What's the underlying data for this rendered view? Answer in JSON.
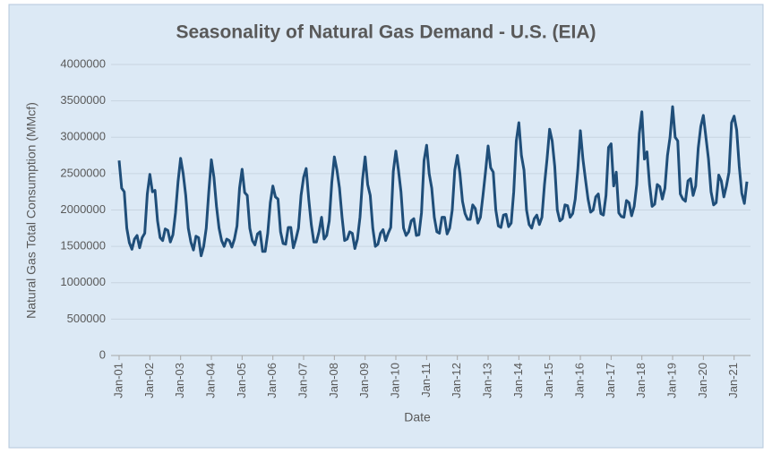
{
  "chart_data": {
    "type": "line",
    "title": "Seasonality of Natural Gas Demand - U.S. (EIA)",
    "x_label": "Date",
    "y_label": "Natural Gas Total Consumption (MMcf)",
    "ylim": [
      0,
      4000000
    ],
    "yticks": [
      0,
      500000,
      1000000,
      1500000,
      2000000,
      2500000,
      3000000,
      3500000,
      4000000
    ],
    "grid": true,
    "categories": [
      "Jan-01",
      null,
      null,
      null,
      null,
      null,
      null,
      null,
      null,
      null,
      null,
      null,
      "Jan-02",
      null,
      null,
      null,
      null,
      null,
      null,
      null,
      null,
      null,
      null,
      null,
      "Jan-03",
      null,
      null,
      null,
      null,
      null,
      null,
      null,
      null,
      null,
      null,
      null,
      "Jan-04",
      null,
      null,
      null,
      null,
      null,
      null,
      null,
      null,
      null,
      null,
      null,
      "Jan-05",
      null,
      null,
      null,
      null,
      null,
      null,
      null,
      null,
      null,
      null,
      null,
      "Jan-06",
      null,
      null,
      null,
      null,
      null,
      null,
      null,
      null,
      null,
      null,
      null,
      "Jan-07",
      null,
      null,
      null,
      null,
      null,
      null,
      null,
      null,
      null,
      null,
      null,
      "Jan-08",
      null,
      null,
      null,
      null,
      null,
      null,
      null,
      null,
      null,
      null,
      null,
      "Jan-09",
      null,
      null,
      null,
      null,
      null,
      null,
      null,
      null,
      null,
      null,
      null,
      "Jan-10",
      null,
      null,
      null,
      null,
      null,
      null,
      null,
      null,
      null,
      null,
      null,
      "Jan-11",
      null,
      null,
      null,
      null,
      null,
      null,
      null,
      null,
      null,
      null,
      null,
      "Jan-12",
      null,
      null,
      null,
      null,
      null,
      null,
      null,
      null,
      null,
      null,
      null,
      "Jan-13",
      null,
      null,
      null,
      null,
      null,
      null,
      null,
      null,
      null,
      null,
      null,
      "Jan-14",
      null,
      null,
      null,
      null,
      null,
      null,
      null,
      null,
      null,
      null,
      null,
      "Jan-15",
      null,
      null,
      null,
      null,
      null,
      null,
      null,
      null,
      null,
      null,
      null,
      "Jan-16",
      null,
      null,
      null,
      null,
      null,
      null,
      null,
      null,
      null,
      null,
      null,
      "Jan-17",
      null,
      null,
      null,
      null,
      null,
      null,
      null,
      null,
      null,
      null,
      null,
      "Jan-18",
      null,
      null,
      null,
      null,
      null,
      null,
      null,
      null,
      null,
      null,
      null,
      "Jan-19",
      null,
      null,
      null,
      null,
      null,
      null,
      null,
      null,
      null,
      null,
      null,
      "Jan-20",
      null,
      null,
      null,
      null,
      null,
      null,
      null,
      null,
      null,
      null,
      null,
      "Jan-21",
      null,
      null,
      null,
      null,
      null
    ],
    "series": [
      {
        "color": "#1f4e79",
        "values": [
          2680000,
          2300000,
          2250000,
          1750000,
          1550000,
          1460000,
          1600000,
          1650000,
          1480000,
          1620000,
          1680000,
          2220000,
          2490000,
          2250000,
          2270000,
          1850000,
          1620000,
          1580000,
          1740000,
          1720000,
          1560000,
          1660000,
          1960000,
          2390000,
          2710000,
          2500000,
          2200000,
          1750000,
          1560000,
          1450000,
          1640000,
          1620000,
          1370000,
          1500000,
          1750000,
          2250000,
          2690000,
          2450000,
          2050000,
          1750000,
          1580000,
          1500000,
          1600000,
          1580000,
          1490000,
          1600000,
          1780000,
          2300000,
          2560000,
          2240000,
          2200000,
          1750000,
          1580000,
          1520000,
          1670000,
          1700000,
          1430000,
          1430000,
          1680000,
          2100000,
          2330000,
          2180000,
          2150000,
          1700000,
          1540000,
          1530000,
          1760000,
          1760000,
          1480000,
          1600000,
          1750000,
          2200000,
          2450000,
          2570000,
          2150000,
          1800000,
          1560000,
          1560000,
          1700000,
          1900000,
          1600000,
          1650000,
          1850000,
          2380000,
          2730000,
          2550000,
          2300000,
          1900000,
          1580000,
          1600000,
          1700000,
          1680000,
          1470000,
          1600000,
          1900000,
          2420000,
          2730000,
          2350000,
          2200000,
          1750000,
          1500000,
          1530000,
          1680000,
          1730000,
          1580000,
          1680000,
          1760000,
          2530000,
          2810000,
          2550000,
          2250000,
          1750000,
          1650000,
          1700000,
          1850000,
          1880000,
          1650000,
          1660000,
          1960000,
          2680000,
          2890000,
          2500000,
          2300000,
          1900000,
          1700000,
          1680000,
          1900000,
          1900000,
          1670000,
          1750000,
          2000000,
          2550000,
          2750000,
          2500000,
          2120000,
          1950000,
          1870000,
          1870000,
          2070000,
          2020000,
          1820000,
          1900000,
          2200000,
          2530000,
          2880000,
          2580000,
          2520000,
          2000000,
          1780000,
          1760000,
          1930000,
          1940000,
          1770000,
          1820000,
          2250000,
          2950000,
          3200000,
          2750000,
          2550000,
          2000000,
          1800000,
          1750000,
          1880000,
          1930000,
          1800000,
          1900000,
          2350000,
          2700000,
          3110000,
          2950000,
          2600000,
          2000000,
          1850000,
          1880000,
          2070000,
          2060000,
          1900000,
          1950000,
          2150000,
          2550000,
          3090000,
          2700000,
          2420000,
          2150000,
          1970000,
          2000000,
          2180000,
          2220000,
          1950000,
          1930000,
          2200000,
          2860000,
          2910000,
          2330000,
          2520000,
          1960000,
          1910000,
          1900000,
          2130000,
          2100000,
          1920000,
          2050000,
          2350000,
          3050000,
          3350000,
          2700000,
          2800000,
          2350000,
          2050000,
          2080000,
          2350000,
          2320000,
          2150000,
          2300000,
          2750000,
          3000000,
          3420000,
          3000000,
          2950000,
          2220000,
          2150000,
          2120000,
          2400000,
          2430000,
          2200000,
          2330000,
          2850000,
          3150000,
          3300000,
          3000000,
          2700000,
          2250000,
          2070000,
          2100000,
          2480000,
          2400000,
          2180000,
          2330000,
          2520000,
          3200000,
          3290000,
          3100000,
          2600000,
          2230000,
          2090000,
          2390000
        ]
      }
    ]
  }
}
